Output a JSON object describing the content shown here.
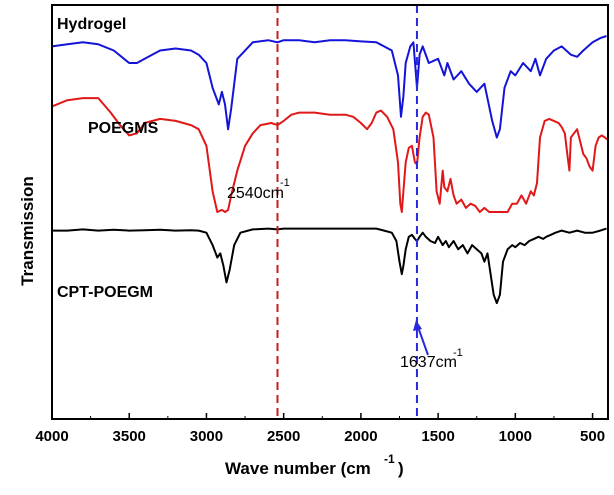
{
  "chart_data": {
    "type": "line",
    "xlabel": "Wave number (cm",
    "xlabel_sup": "-1",
    "xlabel_close": ")",
    "ylabel": "Transmission",
    "xlim": [
      4000,
      400
    ],
    "x_ticks": [
      4000,
      3500,
      3000,
      2500,
      2000,
      1500,
      1000,
      500
    ],
    "grid": false,
    "colors": {
      "Hydrogel": "#1414d8",
      "POEGMS": "#e01818",
      "CPT-POEGM": "#000000",
      "line_2540": "#c81e1e",
      "line_1637": "#2828e0"
    },
    "reference_lines": [
      {
        "x": 2540,
        "label": "2540cm",
        "sup": "-1",
        "color": "#c81e1e",
        "style": "dashed"
      },
      {
        "x": 1637,
        "label": "1637cm",
        "sup": "-1",
        "color": "#2828e0",
        "style": "dashed"
      }
    ],
    "series": [
      {
        "name": "Hydrogel",
        "color": "#1414d8",
        "points": [
          [
            4000,
            0.9
          ],
          [
            3900,
            0.905
          ],
          [
            3800,
            0.91
          ],
          [
            3700,
            0.905
          ],
          [
            3600,
            0.89
          ],
          [
            3500,
            0.86
          ],
          [
            3450,
            0.86
          ],
          [
            3400,
            0.87
          ],
          [
            3300,
            0.89
          ],
          [
            3200,
            0.895
          ],
          [
            3100,
            0.89
          ],
          [
            3050,
            0.88
          ],
          [
            3000,
            0.86
          ],
          [
            2960,
            0.8
          ],
          [
            2920,
            0.76
          ],
          [
            2900,
            0.79
          ],
          [
            2880,
            0.76
          ],
          [
            2860,
            0.7
          ],
          [
            2840,
            0.75
          ],
          [
            2800,
            0.87
          ],
          [
            2700,
            0.91
          ],
          [
            2600,
            0.915
          ],
          [
            2540,
            0.91
          ],
          [
            2500,
            0.915
          ],
          [
            2400,
            0.915
          ],
          [
            2300,
            0.91
          ],
          [
            2200,
            0.915
          ],
          [
            2100,
            0.915
          ],
          [
            2000,
            0.912
          ],
          [
            1900,
            0.91
          ],
          [
            1800,
            0.89
          ],
          [
            1760,
            0.83
          ],
          [
            1740,
            0.73
          ],
          [
            1725,
            0.78
          ],
          [
            1710,
            0.86
          ],
          [
            1680,
            0.9
          ],
          [
            1660,
            0.91
          ],
          [
            1637,
            0.8
          ],
          [
            1620,
            0.88
          ],
          [
            1600,
            0.9
          ],
          [
            1560,
            0.86
          ],
          [
            1500,
            0.87
          ],
          [
            1460,
            0.83
          ],
          [
            1440,
            0.86
          ],
          [
            1400,
            0.82
          ],
          [
            1350,
            0.84
          ],
          [
            1300,
            0.81
          ],
          [
            1250,
            0.79
          ],
          [
            1200,
            0.81
          ],
          [
            1150,
            0.72
          ],
          [
            1120,
            0.68
          ],
          [
            1100,
            0.7
          ],
          [
            1070,
            0.8
          ],
          [
            1030,
            0.84
          ],
          [
            1000,
            0.83
          ],
          [
            950,
            0.86
          ],
          [
            900,
            0.84
          ],
          [
            870,
            0.87
          ],
          [
            840,
            0.83
          ],
          [
            800,
            0.87
          ],
          [
            750,
            0.89
          ],
          [
            700,
            0.9
          ],
          [
            640,
            0.88
          ],
          [
            600,
            0.875
          ],
          [
            560,
            0.89
          ],
          [
            500,
            0.91
          ],
          [
            450,
            0.92
          ],
          [
            410,
            0.925
          ]
        ]
      },
      {
        "name": "POEGMS",
        "color": "#e01818",
        "points": [
          [
            4000,
            0.755
          ],
          [
            3900,
            0.77
          ],
          [
            3800,
            0.775
          ],
          [
            3700,
            0.775
          ],
          [
            3620,
            0.74
          ],
          [
            3560,
            0.71
          ],
          [
            3500,
            0.685
          ],
          [
            3450,
            0.69
          ],
          [
            3400,
            0.715
          ],
          [
            3300,
            0.725
          ],
          [
            3200,
            0.72
          ],
          [
            3100,
            0.71
          ],
          [
            3050,
            0.7
          ],
          [
            3000,
            0.66
          ],
          [
            2960,
            0.55
          ],
          [
            2930,
            0.5
          ],
          [
            2900,
            0.505
          ],
          [
            2880,
            0.5
          ],
          [
            2860,
            0.505
          ],
          [
            2840,
            0.54
          ],
          [
            2800,
            0.6
          ],
          [
            2750,
            0.66
          ],
          [
            2700,
            0.69
          ],
          [
            2650,
            0.71
          ],
          [
            2580,
            0.715
          ],
          [
            2540,
            0.71
          ],
          [
            2500,
            0.72
          ],
          [
            2450,
            0.735
          ],
          [
            2400,
            0.74
          ],
          [
            2300,
            0.74
          ],
          [
            2200,
            0.735
          ],
          [
            2100,
            0.735
          ],
          [
            2050,
            0.73
          ],
          [
            2000,
            0.715
          ],
          [
            1960,
            0.7
          ],
          [
            1930,
            0.715
          ],
          [
            1900,
            0.74
          ],
          [
            1870,
            0.745
          ],
          [
            1830,
            0.73
          ],
          [
            1790,
            0.7
          ],
          [
            1760,
            0.62
          ],
          [
            1745,
            0.52
          ],
          [
            1735,
            0.5
          ],
          [
            1725,
            0.55
          ],
          [
            1710,
            0.62
          ],
          [
            1690,
            0.655
          ],
          [
            1670,
            0.66
          ],
          [
            1650,
            0.62
          ],
          [
            1637,
            0.615
          ],
          [
            1620,
            0.68
          ],
          [
            1600,
            0.73
          ],
          [
            1580,
            0.74
          ],
          [
            1560,
            0.735
          ],
          [
            1530,
            0.68
          ],
          [
            1510,
            0.55
          ],
          [
            1490,
            0.52
          ],
          [
            1470,
            0.6
          ],
          [
            1460,
            0.56
          ],
          [
            1440,
            0.55
          ],
          [
            1420,
            0.58
          ],
          [
            1400,
            0.54
          ],
          [
            1380,
            0.52
          ],
          [
            1350,
            0.53
          ],
          [
            1320,
            0.51
          ],
          [
            1290,
            0.52
          ],
          [
            1260,
            0.515
          ],
          [
            1230,
            0.5
          ],
          [
            1200,
            0.51
          ],
          [
            1170,
            0.5
          ],
          [
            1140,
            0.5
          ],
          [
            1110,
            0.5
          ],
          [
            1080,
            0.5
          ],
          [
            1050,
            0.5
          ],
          [
            1020,
            0.52
          ],
          [
            990,
            0.52
          ],
          [
            960,
            0.54
          ],
          [
            930,
            0.52
          ],
          [
            900,
            0.55
          ],
          [
            880,
            0.54
          ],
          [
            860,
            0.57
          ],
          [
            840,
            0.68
          ],
          [
            810,
            0.72
          ],
          [
            780,
            0.725
          ],
          [
            750,
            0.72
          ],
          [
            720,
            0.715
          ],
          [
            700,
            0.705
          ],
          [
            680,
            0.69
          ],
          [
            660,
            0.63
          ],
          [
            650,
            0.6
          ],
          [
            640,
            0.68
          ],
          [
            620,
            0.69
          ],
          [
            600,
            0.7
          ],
          [
            580,
            0.67
          ],
          [
            560,
            0.64
          ],
          [
            540,
            0.63
          ],
          [
            520,
            0.61
          ],
          [
            500,
            0.6
          ],
          [
            480,
            0.66
          ],
          [
            460,
            0.68
          ],
          [
            440,
            0.685
          ],
          [
            420,
            0.68
          ],
          [
            405,
            0.675
          ]
        ]
      },
      {
        "name": "CPT-POEGM",
        "color": "#000000",
        "points": [
          [
            4000,
            0.455
          ],
          [
            3900,
            0.455
          ],
          [
            3800,
            0.458
          ],
          [
            3700,
            0.455
          ],
          [
            3600,
            0.457
          ],
          [
            3500,
            0.455
          ],
          [
            3400,
            0.456
          ],
          [
            3300,
            0.457
          ],
          [
            3200,
            0.455
          ],
          [
            3100,
            0.456
          ],
          [
            3050,
            0.455
          ],
          [
            3000,
            0.45
          ],
          [
            2960,
            0.42
          ],
          [
            2930,
            0.39
          ],
          [
            2910,
            0.4
          ],
          [
            2890,
            0.37
          ],
          [
            2870,
            0.33
          ],
          [
            2850,
            0.36
          ],
          [
            2820,
            0.42
          ],
          [
            2780,
            0.45
          ],
          [
            2700,
            0.458
          ],
          [
            2600,
            0.46
          ],
          [
            2540,
            0.458
          ],
          [
            2500,
            0.46
          ],
          [
            2400,
            0.46
          ],
          [
            2300,
            0.46
          ],
          [
            2200,
            0.46
          ],
          [
            2100,
            0.46
          ],
          [
            2000,
            0.46
          ],
          [
            1900,
            0.46
          ],
          [
            1850,
            0.455
          ],
          [
            1800,
            0.45
          ],
          [
            1770,
            0.43
          ],
          [
            1750,
            0.38
          ],
          [
            1735,
            0.35
          ],
          [
            1725,
            0.37
          ],
          [
            1710,
            0.41
          ],
          [
            1690,
            0.44
          ],
          [
            1670,
            0.445
          ],
          [
            1650,
            0.435
          ],
          [
            1637,
            0.43
          ],
          [
            1620,
            0.44
          ],
          [
            1600,
            0.45
          ],
          [
            1580,
            0.44
          ],
          [
            1550,
            0.43
          ],
          [
            1520,
            0.425
          ],
          [
            1500,
            0.44
          ],
          [
            1470,
            0.42
          ],
          [
            1450,
            0.43
          ],
          [
            1430,
            0.415
          ],
          [
            1400,
            0.43
          ],
          [
            1370,
            0.41
          ],
          [
            1340,
            0.42
          ],
          [
            1310,
            0.4
          ],
          [
            1280,
            0.42
          ],
          [
            1250,
            0.41
          ],
          [
            1220,
            0.4
          ],
          [
            1200,
            0.38
          ],
          [
            1180,
            0.4
          ],
          [
            1160,
            0.35
          ],
          [
            1140,
            0.3
          ],
          [
            1120,
            0.28
          ],
          [
            1100,
            0.3
          ],
          [
            1080,
            0.38
          ],
          [
            1050,
            0.41
          ],
          [
            1020,
            0.42
          ],
          [
            1000,
            0.415
          ],
          [
            970,
            0.425
          ],
          [
            940,
            0.42
          ],
          [
            910,
            0.43
          ],
          [
            880,
            0.435
          ],
          [
            850,
            0.44
          ],
          [
            820,
            0.435
          ],
          [
            800,
            0.44
          ],
          [
            770,
            0.445
          ],
          [
            740,
            0.45
          ],
          [
            700,
            0.455
          ],
          [
            650,
            0.45
          ],
          [
            600,
            0.455
          ],
          [
            550,
            0.45
          ],
          [
            500,
            0.45
          ],
          [
            450,
            0.455
          ],
          [
            410,
            0.46
          ]
        ]
      }
    ]
  }
}
